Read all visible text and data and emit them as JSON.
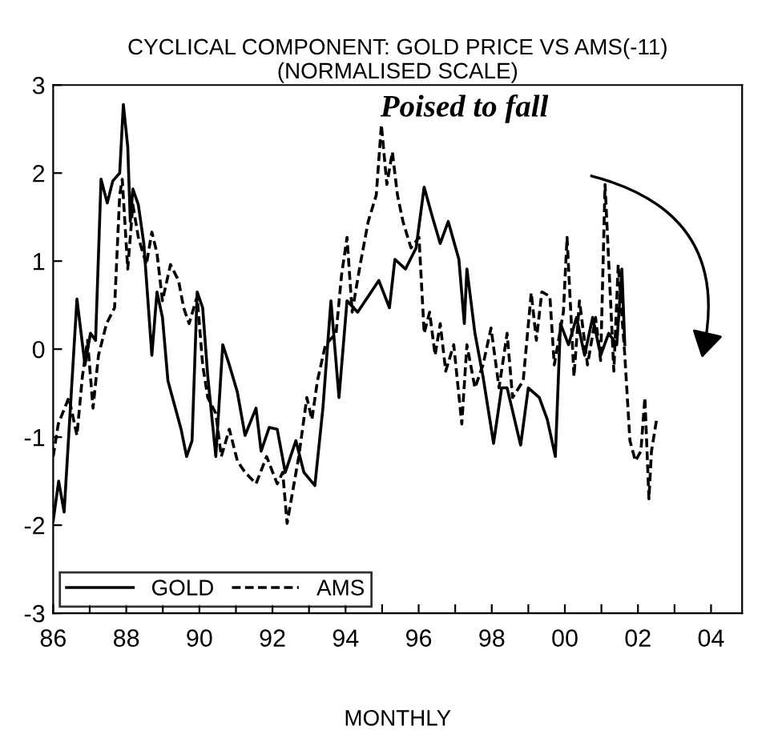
{
  "chart_data": {
    "type": "line",
    "title": "CYCLICAL COMPONENT: GOLD PRICE VS AMS(-11)\n(NORMALISED SCALE)",
    "xlabel": "MONTHLY",
    "annotations": [
      "Poised to fall"
    ],
    "xlim": [
      1986,
      2004.85
    ],
    "ylim": [
      -3,
      3
    ],
    "yticks": [
      -3,
      -2,
      -1,
      0,
      1,
      2,
      3
    ],
    "xticks": [
      {
        "value": 1986,
        "label": "86"
      },
      {
        "value": 1987,
        "label": null
      },
      {
        "value": 1988,
        "label": "88"
      },
      {
        "value": 1989,
        "label": null
      },
      {
        "value": 1990,
        "label": "90"
      },
      {
        "value": 1991,
        "label": null
      },
      {
        "value": 1992,
        "label": "92"
      },
      {
        "value": 1993,
        "label": null
      },
      {
        "value": 1994,
        "label": "94"
      },
      {
        "value": 1995,
        "label": null
      },
      {
        "value": 1996,
        "label": "96"
      },
      {
        "value": 1997,
        "label": null
      },
      {
        "value": 1998,
        "label": "98"
      },
      {
        "value": 1999,
        "label": null
      },
      {
        "value": 2000,
        "label": "00"
      },
      {
        "value": 2001,
        "label": null
      },
      {
        "value": 2002,
        "label": "02"
      },
      {
        "value": 2003,
        "label": null
      },
      {
        "value": 2004,
        "label": "04"
      }
    ],
    "grid": false,
    "legend": "bottom left",
    "marker": "none",
    "series": [
      {
        "name": "GOLD",
        "color": "#000000",
        "line_style": "solid",
        "x": [
          1986.0,
          1986.15,
          1986.3,
          1986.65,
          1986.87,
          1987.02,
          1987.16,
          1987.31,
          1987.48,
          1987.63,
          1987.82,
          1987.92,
          1988.04,
          1988.11,
          1988.18,
          1988.33,
          1988.48,
          1988.7,
          1988.84,
          1988.99,
          1989.14,
          1989.5,
          1989.65,
          1989.8,
          1989.94,
          1990.09,
          1990.23,
          1990.45,
          1990.64,
          1990.82,
          1991.04,
          1991.25,
          1991.55,
          1991.69,
          1991.91,
          1992.13,
          1992.35,
          1992.64,
          1992.86,
          1993.16,
          1993.38,
          1993.6,
          1993.82,
          1994.04,
          1994.33,
          1994.62,
          1994.91,
          1995.2,
          1995.35,
          1995.64,
          1995.93,
          1996.15,
          1996.37,
          1996.59,
          1996.81,
          1997.1,
          1997.25,
          1997.32,
          1997.54,
          1997.76,
          1998.05,
          1998.27,
          1998.42,
          1998.79,
          1999.0,
          1999.3,
          1999.52,
          1999.74,
          1999.88,
          2000.1,
          2000.32,
          2000.54,
          2000.76,
          2000.98,
          2001.2,
          2001.42,
          2001.56,
          2001.64
        ],
        "values": [
          -1.95,
          -1.5,
          -1.85,
          0.57,
          -0.18,
          0.18,
          0.1,
          1.93,
          1.66,
          1.91,
          2.0,
          2.78,
          2.3,
          1.45,
          1.82,
          1.64,
          1.2,
          -0.07,
          0.65,
          0.36,
          -0.36,
          -0.91,
          -1.22,
          -1.04,
          0.65,
          0.47,
          -0.31,
          -1.22,
          0.05,
          -0.18,
          -0.49,
          -0.98,
          -0.67,
          -1.16,
          -0.89,
          -0.91,
          -1.4,
          -1.04,
          -1.4,
          -1.55,
          -0.67,
          0.55,
          -0.55,
          0.55,
          0.42,
          0.6,
          0.78,
          0.47,
          1.02,
          0.91,
          1.15,
          1.84,
          1.51,
          1.2,
          1.45,
          1.02,
          0.29,
          0.91,
          0.18,
          -0.31,
          -1.07,
          -0.44,
          -0.44,
          -1.09,
          -0.44,
          -0.55,
          -0.8,
          -1.22,
          0.29,
          0.05,
          0.36,
          -0.07,
          0.36,
          -0.07,
          0.18,
          0.05,
          0.91,
          0.05
        ]
      },
      {
        "name": "AMS",
        "color": "#000000",
        "line_style": "dashed",
        "x": [
          1986.0,
          1986.14,
          1986.43,
          1986.65,
          1986.8,
          1986.94,
          1987.09,
          1987.24,
          1987.46,
          1987.68,
          1987.82,
          1987.89,
          1988.04,
          1988.18,
          1988.33,
          1988.55,
          1988.7,
          1988.84,
          1988.99,
          1989.21,
          1989.43,
          1989.57,
          1989.72,
          1989.94,
          1990.09,
          1990.23,
          1990.45,
          1990.6,
          1990.82,
          1991.04,
          1991.25,
          1991.55,
          1991.84,
          1992.13,
          1992.28,
          1992.4,
          1992.72,
          1992.94,
          1993.08,
          1993.23,
          1993.45,
          1993.74,
          1993.89,
          1994.04,
          1994.18,
          1994.4,
          1994.62,
          1994.84,
          1994.98,
          1995.13,
          1995.28,
          1995.42,
          1995.57,
          1995.79,
          1996.01,
          1996.15,
          1996.3,
          1996.45,
          1996.59,
          1996.74,
          1996.96,
          1997.18,
          1997.32,
          1997.54,
          1997.76,
          1997.98,
          1998.2,
          1998.42,
          1998.57,
          1998.86,
          1999.08,
          1999.22,
          1999.37,
          1999.59,
          1999.71,
          1999.96,
          2000.06,
          2000.25,
          2000.4,
          2000.62,
          2000.84,
          2000.98,
          2001.1,
          2001.23,
          2001.34,
          2001.46,
          2001.64,
          2001.78,
          2001.93,
          2002.08,
          2002.19,
          2002.3,
          2002.37,
          2002.51
        ],
        "values": [
          -1.22,
          -0.85,
          -0.55,
          -0.98,
          -0.31,
          0.1,
          -0.67,
          -0.07,
          0.29,
          0.47,
          1.75,
          1.93,
          0.91,
          1.64,
          1.27,
          0.96,
          1.33,
          1.09,
          0.55,
          0.96,
          0.78,
          0.47,
          0.29,
          0.6,
          -0.18,
          -0.55,
          -0.73,
          -1.22,
          -0.91,
          -1.27,
          -1.4,
          -1.53,
          -1.22,
          -1.53,
          -1.4,
          -1.98,
          -1.22,
          -0.55,
          -0.8,
          -0.36,
          0.05,
          0.18,
          0.84,
          1.27,
          0.42,
          0.96,
          1.45,
          1.75,
          2.55,
          1.87,
          2.24,
          1.75,
          1.45,
          1.15,
          1.27,
          0.18,
          0.42,
          -0.07,
          0.29,
          -0.25,
          0.05,
          -0.85,
          0.05,
          -0.44,
          -0.18,
          0.24,
          -0.44,
          0.18,
          -0.55,
          -0.36,
          0.64,
          0.1,
          0.65,
          0.6,
          -0.18,
          0.42,
          1.27,
          -0.31,
          0.55,
          -0.18,
          0.36,
          -0.13,
          1.87,
          0.73,
          -0.25,
          0.96,
          -0.07,
          -1.04,
          -1.27,
          -1.16,
          -0.55,
          -1.7,
          -1.16,
          -0.8
        ]
      }
    ]
  }
}
